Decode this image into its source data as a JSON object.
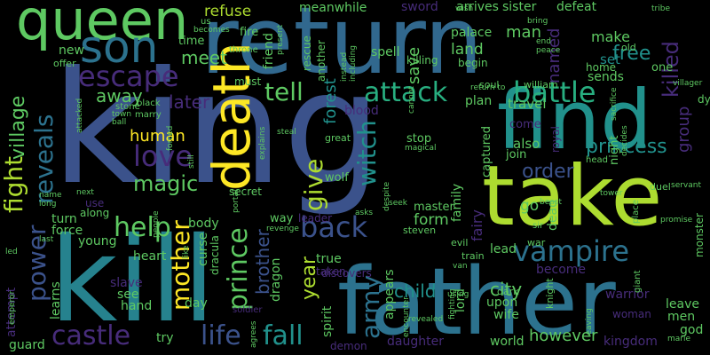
{
  "colors": {
    "background": "#000000",
    "palette": [
      "#440154",
      "#472c7a",
      "#3b528b",
      "#2c728e",
      "#21918c",
      "#28ae80",
      "#5ec962",
      "#addc30",
      "#fde725"
    ]
  },
  "words": {
    "king": "king",
    "return": "return",
    "kill": "kill",
    "father": "father",
    "take": "take",
    "find": "find",
    "death": "death",
    "queen": "queen",
    "son": "son",
    "escape": "escape",
    "battle": "battle",
    "vampire": "vampire",
    "love": "love",
    "help": "help",
    "attack": "attack",
    "prince": "prince",
    "life": "life",
    "fall": "fall",
    "castle": "castle",
    "witch": "witch",
    "back": "back",
    "give": "give",
    "army": "army",
    "tell": "tell",
    "power": "power",
    "mother": "mother",
    "fight": "fight",
    "village": "village",
    "reveals": "reveals",
    "princess": "princess",
    "order": "order",
    "free": "free",
    "killed": "killed",
    "magic": "magic",
    "child": "child",
    "city": "city",
    "year": "year",
    "brother": "brother",
    "meet": "meet",
    "away": "away",
    "later": "later",
    "human": "human",
    "refuse": "refuse",
    "meanwhile": "meanwhile",
    "sword": "sword",
    "arrives": "arrives",
    "sister": "sister",
    "defeat": "defeat",
    "man": "man",
    "named": "named",
    "make": "make",
    "save": "save",
    "forest": "forest",
    "land": "land",
    "palace": "palace",
    "begin": "begin",
    "set": "set",
    "home": "home",
    "sends": "sends",
    "one": "one",
    "new": "new",
    "offer": "offer",
    "time": "time",
    "fire": "fire",
    "friend": "friend",
    "rescue": "rescue",
    "another": "another",
    "spell": "spell",
    "killing": "killing",
    "plan": "plan",
    "travel": "travel",
    "come": "come",
    "also": "also",
    "join": "join",
    "captured": "captured",
    "family": "family",
    "fairy": "fairy",
    "form": "form",
    "go": "go",
    "dead": "dead",
    "master": "master",
    "stop": "stop",
    "blood": "blood",
    "wolf": "wolf",
    "night": "night",
    "royal": "royal",
    "group": "group",
    "god": "god",
    "leave": "leave",
    "men": "men",
    "warrior": "warrior",
    "become": "become",
    "however": "however",
    "kingdom": "kingdom",
    "world": "world",
    "upon": "upon",
    "wife": "wife",
    "lord": "lord",
    "appears": "appears",
    "daughter": "daughter",
    "spirit": "spirit",
    "demon": "demon",
    "true": "true",
    "taken": "taken",
    "dragon": "dragon",
    "leader": "leader",
    "way": "way",
    "turn": "turn",
    "force": "force",
    "young": "young",
    "attempt": "attempt",
    "learns": "learns",
    "heart": "heart",
    "slave": "slave",
    "see": "see",
    "hand": "hand",
    "body": "body",
    "curse": "curse",
    "day": "day",
    "try": "try",
    "guard": "guard",
    "lead": "lead",
    "woman": "woman",
    "must": "must",
    "secret": "secret",
    "use": "use",
    "along": "along",
    "dracula": "dracula",
    "discovers": "discovers",
    "soldier": "soldier",
    "stone": "stone",
    "marry": "marry",
    "black": "black",
    "throne": "throne",
    "soul": "soul",
    "william": "william",
    "steven": "steven",
    "great": "great",
    "evil": "evil",
    "train": "train",
    "war": "war",
    "dark": "dark",
    "knight": "knight",
    "us": "us",
    "becomes": "becomes",
    "wish": "wish",
    "bring": "bring",
    "end": "end",
    "peace": "peace",
    "tribe": "tribe",
    "old": "old",
    "villager": "villager",
    "dy": "dy",
    "sacrifice": "sacrifice",
    "decides": "decides",
    "duel": "duel",
    "servant": "servant",
    "beast": "beast",
    "head": "head",
    "tower": "tower",
    "sir": "sir",
    "place": "place",
    "promise": "promise",
    "monster": "monster",
    "marie": "marie",
    "giant": "giant",
    "fighting": "fighting",
    "emperor": "emperor",
    "led": "led",
    "last": "last",
    "name": "name",
    "long": "long",
    "next": "next",
    "town": "town",
    "ball": "ball",
    "attacked": "attacked",
    "people": "people",
    "revenge": "revenge",
    "seek": "seek",
    "asks": "asks",
    "portal": "portal",
    "explains": "explains",
    "steal": "steal",
    "magical": "magical",
    "encounter": "encounter",
    "revealed": "revealed",
    "using": "using",
    "van": "van",
    "leaving": "leaving",
    "agrees": "agrees",
    "instead": "instead",
    "including": "including",
    "present": "present",
    "still": "still",
    "despite": "despite",
    "like": "like",
    "cannot": "cannot",
    "return_to": "return to",
    "forced": "forced"
  }
}
